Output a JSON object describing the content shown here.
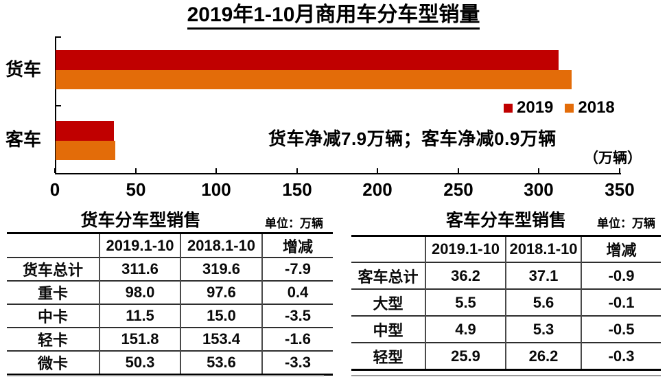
{
  "title": "2019年1-10月商用车分车型销量",
  "chart_data": {
    "type": "bar",
    "orientation": "horizontal",
    "categories": [
      "货车",
      "客车"
    ],
    "series": [
      {
        "name": "2019",
        "color": "#c00000",
        "values": [
          311.6,
          36.2
        ]
      },
      {
        "name": "2018",
        "color": "#e36c09",
        "values": [
          319.6,
          37.1
        ]
      }
    ],
    "xlim": [
      0,
      350
    ],
    "xticks": [
      0,
      50,
      100,
      150,
      200,
      250,
      300,
      350
    ],
    "grid": false,
    "legend_position": "right-middle",
    "annotation": "货车净减7.9万辆；客车净减0.9万辆",
    "unit_label": "（万辆）"
  },
  "tables": [
    {
      "title": "货车分车型销售",
      "unit": "单位：万辆",
      "headers": [
        "",
        "2019.1-10",
        "2018.1-10",
        "增减"
      ],
      "rows": [
        [
          "货车总计",
          "311.6",
          "319.6",
          "-7.9"
        ],
        [
          "重卡",
          "98.0",
          "97.6",
          "0.4"
        ],
        [
          "中卡",
          "11.5",
          "15.0",
          "-3.5"
        ],
        [
          "轻卡",
          "151.8",
          "153.4",
          "-1.6"
        ],
        [
          "微卡",
          "50.3",
          "53.6",
          "-3.3"
        ]
      ]
    },
    {
      "title": "客车分车型销售",
      "unit": "单位：万辆",
      "headers": [
        "",
        "2019.1-10",
        "2018.1-10",
        "增减"
      ],
      "rows": [
        [
          "客车总计",
          "36.2",
          "37.1",
          "-0.9"
        ],
        [
          "大型",
          "5.5",
          "5.6",
          "-0.1"
        ],
        [
          "中型",
          "4.9",
          "5.3",
          "-0.5"
        ],
        [
          "轻型",
          "25.9",
          "26.2",
          "-0.3"
        ]
      ]
    }
  ]
}
